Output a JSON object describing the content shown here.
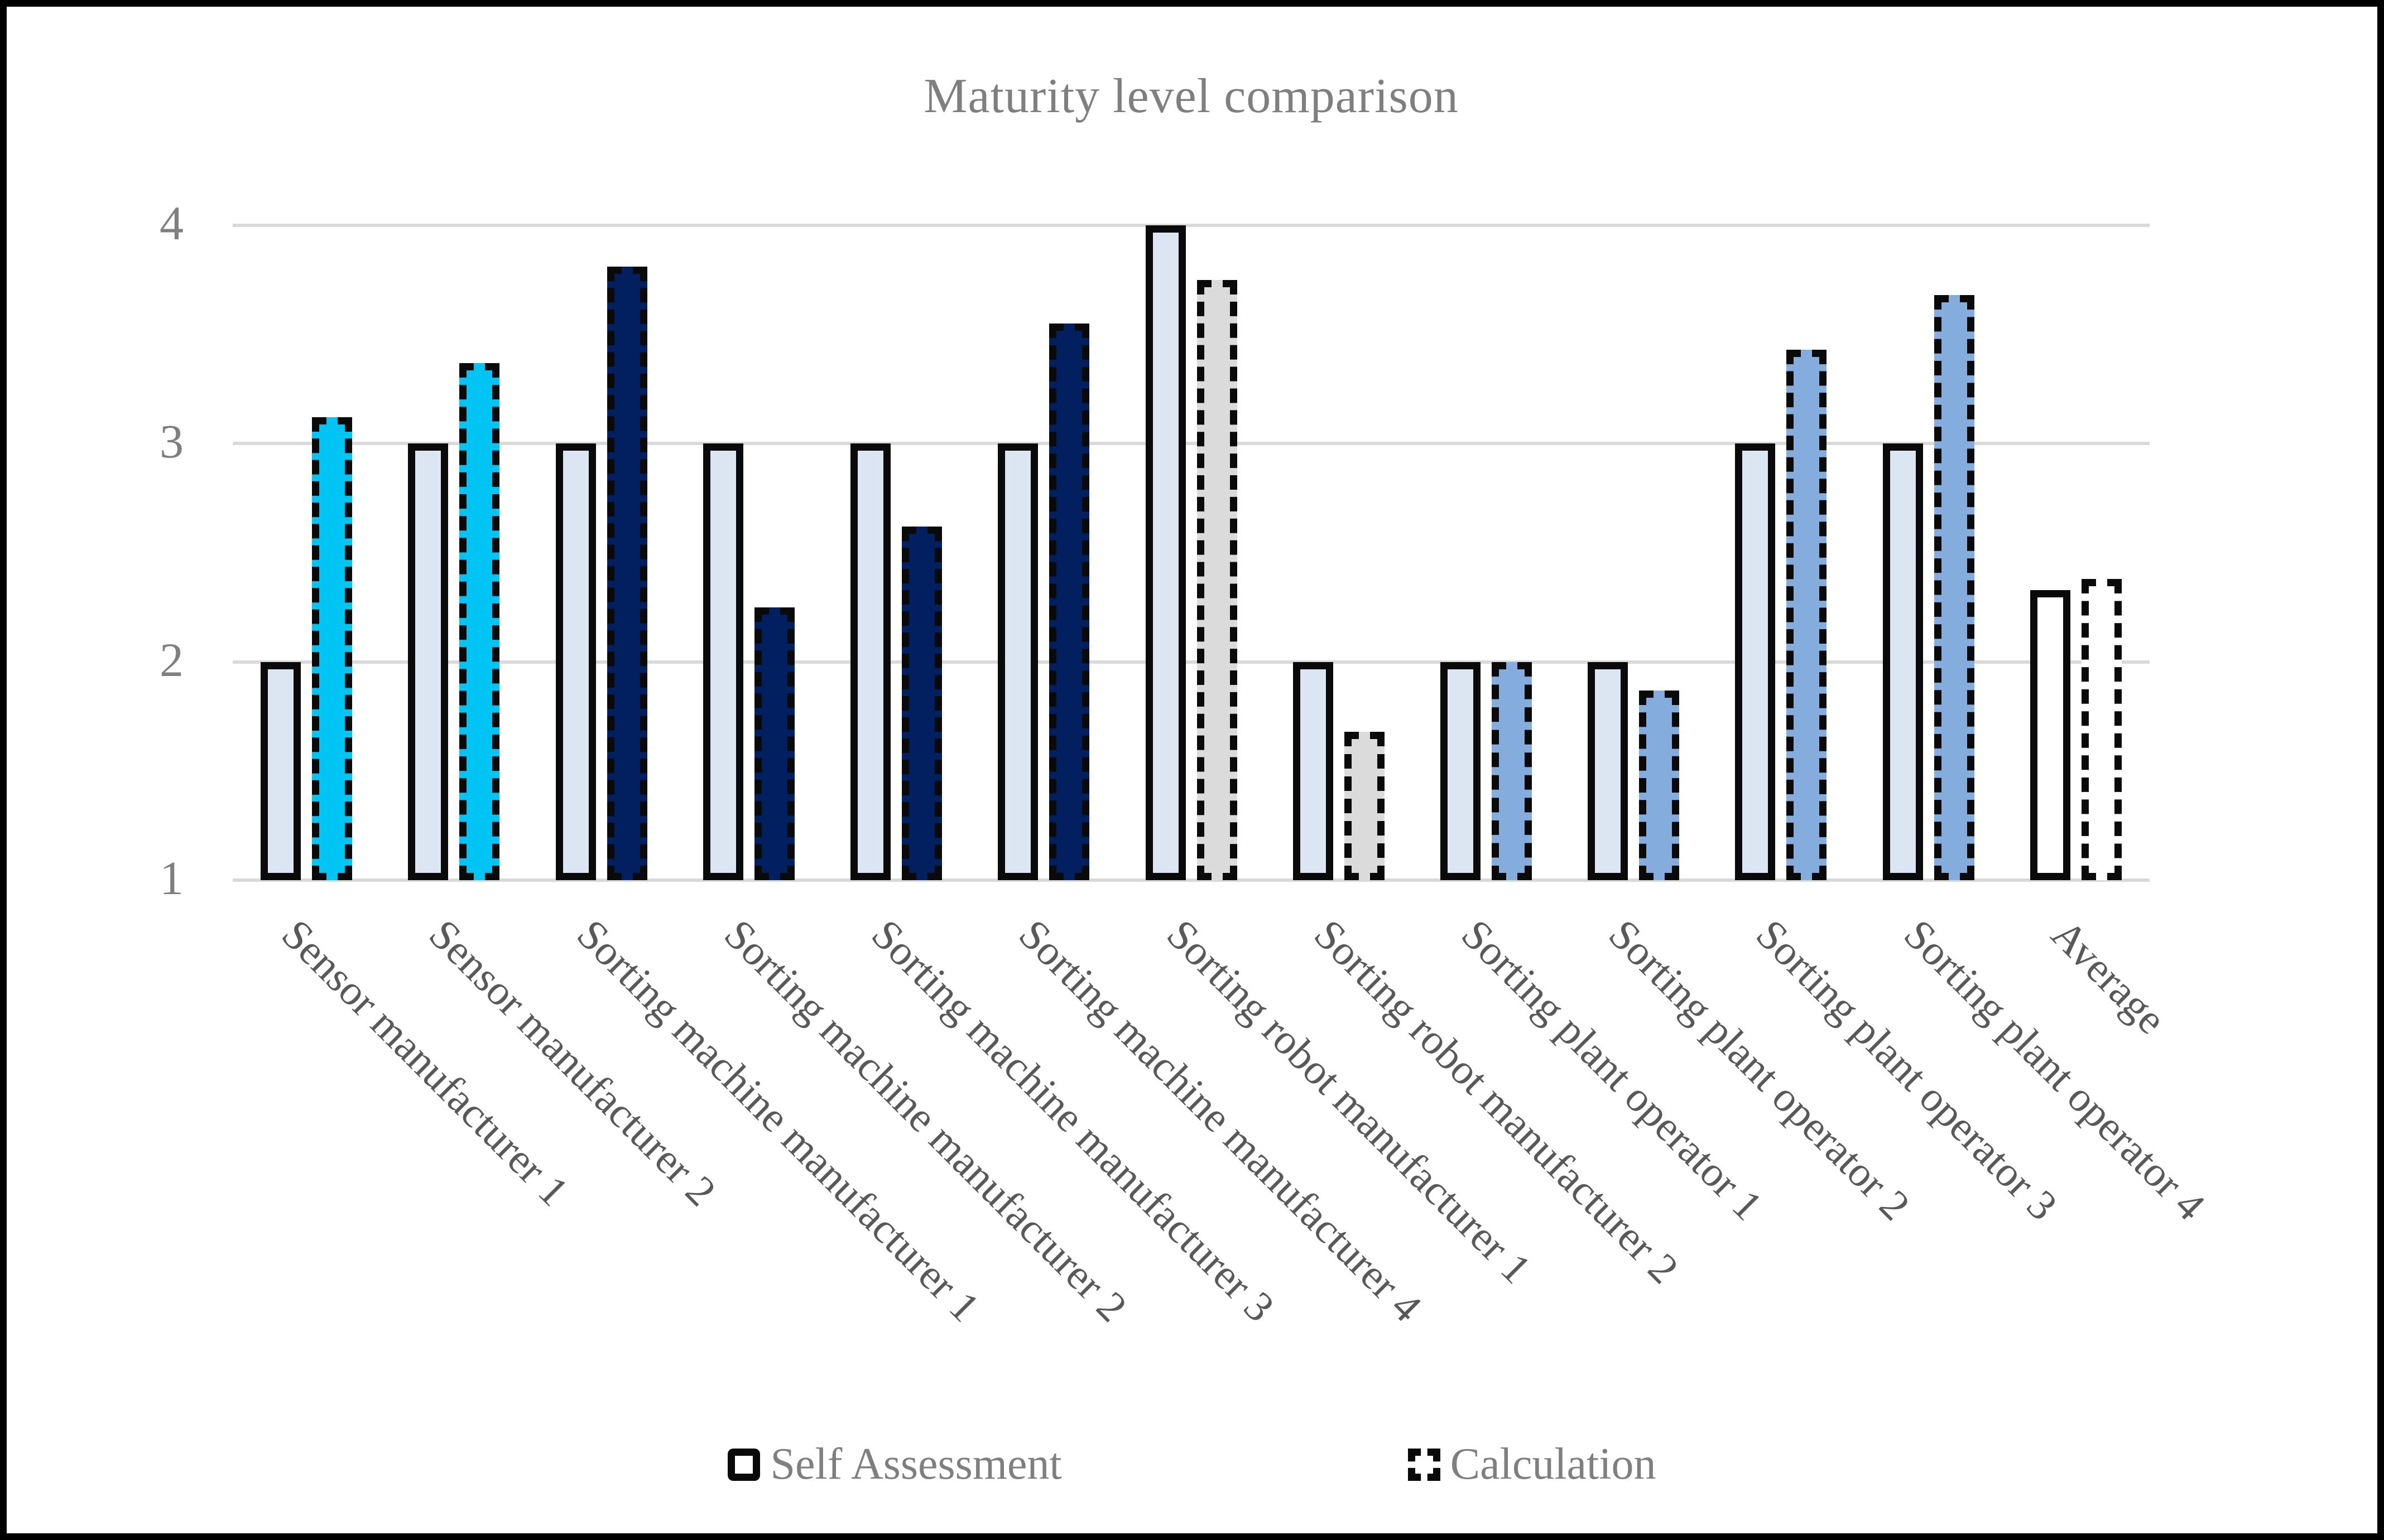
{
  "title": "Maturity level comparison",
  "legend": {
    "self_label": "Self Assessment",
    "calc_label": "Calculation"
  },
  "y_axis": {
    "ticks": [
      "4",
      "3",
      "2",
      "1"
    ],
    "min": 1,
    "max": 4
  },
  "colors": {
    "frame_border": "#000000",
    "gridline": "#D9D9D9",
    "title_text": "#7F7F7F",
    "axis_text": "#7F7F7F",
    "category_text": "#595959",
    "legend_text": "#7F7F7F",
    "bar_border": "#0A0A0A",
    "self_fill": "#DCE5F2",
    "self_fill_average": "#FFFFFF",
    "calc_fill_sensor": "#00C4F3",
    "calc_fill_sorting_machine": "#021F60",
    "calc_fill_sorting_robot": "#DBDBDB",
    "calc_fill_plant_operator": "#84ADDE",
    "calc_fill_average": "#FFFFFF"
  },
  "chart_data": {
    "type": "bar",
    "title": "Maturity level comparison",
    "xlabel": "",
    "ylabel": "",
    "ylim": [
      1,
      4
    ],
    "grid": true,
    "legend_position": "bottom",
    "categories": [
      "Sensor manufacturer 1",
      "Sensor manufacturer 2",
      "Sorting machine manufacturer 1",
      "Sorting machine manufacturer 2",
      "Sorting machine manufacturer 3",
      "Sorting machine manufacturer 4",
      "Sorting robot manufacturer 1",
      "Sorting robot manufacturer 2",
      "Sorting plant operator 1",
      "Sorting plant operator 2",
      "Sorting plant operator 3",
      "Sorting plant operator 4",
      "Average"
    ],
    "series": [
      {
        "name": "Self Assessment",
        "values": [
          2,
          3,
          3,
          3,
          3,
          3,
          4,
          2,
          2,
          2,
          3,
          3,
          2.33
        ],
        "fills": [
          "#DCE5F2",
          "#DCE5F2",
          "#DCE5F2",
          "#DCE5F2",
          "#DCE5F2",
          "#DCE5F2",
          "#DCE5F2",
          "#DCE5F2",
          "#DCE5F2",
          "#DCE5F2",
          "#DCE5F2",
          "#DCE5F2",
          "#FFFFFF"
        ],
        "border_style": "solid"
      },
      {
        "name": "Calculation",
        "values": [
          3.12,
          3.37,
          3.81,
          2.25,
          2.62,
          3.55,
          3.75,
          1.68,
          2.0,
          1.87,
          3.43,
          3.68,
          2.38
        ],
        "fills": [
          "#00C4F3",
          "#00C4F3",
          "#021F60",
          "#021F60",
          "#021F60",
          "#021F60",
          "#DBDBDB",
          "#DBDBDB",
          "#84ADDE",
          "#84ADDE",
          "#84ADDE",
          "#84ADDE",
          "#FFFFFF"
        ],
        "border_style": "dashed"
      }
    ]
  }
}
